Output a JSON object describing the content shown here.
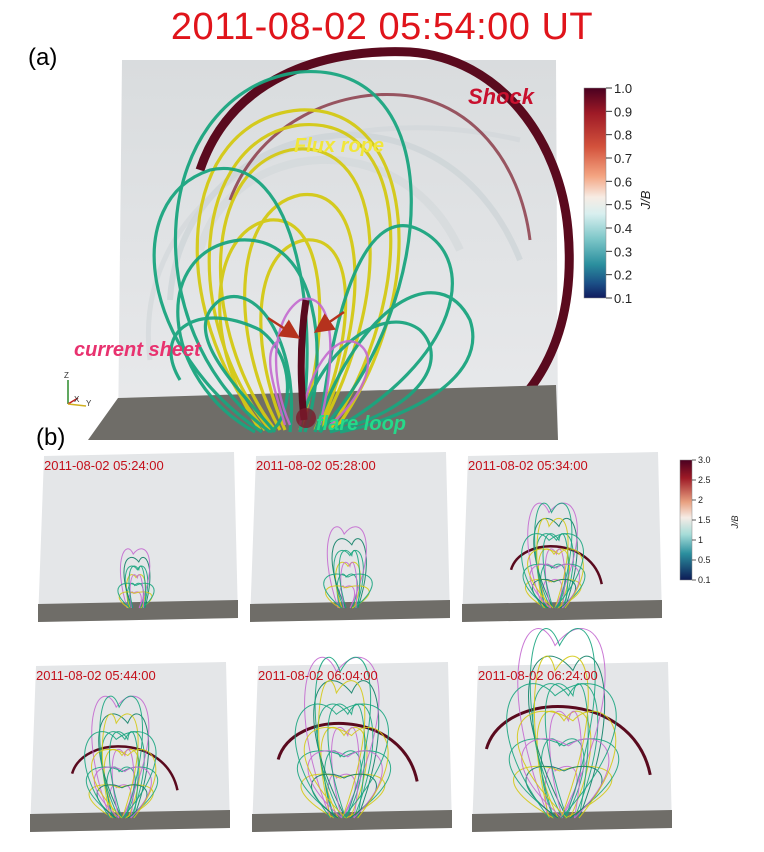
{
  "title": "2011-08-02 05:54:00 UT",
  "panel_a": {
    "label": "(a)",
    "annotations": {
      "shock": "Shock",
      "flux_rope": "Flux rope",
      "current_sheet": "current sheet",
      "flare_loop": "flare loop"
    },
    "axes": {
      "z": "Z",
      "x": "X",
      "y": "Y"
    },
    "colorbar": {
      "label": "J/B",
      "min": 0.1,
      "max": 1.0,
      "ticks": [
        "1.0",
        "0.9",
        "0.8",
        "0.7",
        "0.6",
        "0.5",
        "0.4",
        "0.3",
        "0.2",
        "0.1"
      ],
      "colors": [
        "#4a0020",
        "#9e1a26",
        "#d3523c",
        "#f4a582",
        "#fbe6d3",
        "#d8efef",
        "#7cc6c8",
        "#2b8f9e",
        "#1b4f86",
        "#101b5e"
      ]
    }
  },
  "panel_b": {
    "label": "(b)",
    "colorbar": {
      "label": "J/B",
      "min": 0.1,
      "max": 3.0,
      "ticks": [
        "3.0",
        "2.5",
        "2",
        "1.5",
        "1",
        "0.5",
        "0.1"
      ]
    },
    "snapshots": [
      {
        "time": "2011-08-02 05:24:00",
        "stage": 1
      },
      {
        "time": "2011-08-02 05:28:00",
        "stage": 2
      },
      {
        "time": "2011-08-02 05:34:00",
        "stage": 3
      },
      {
        "time": "2011-08-02 05:44:00",
        "stage": 4
      },
      {
        "time": "2011-08-02 06:04:00",
        "stage": 5
      },
      {
        "time": "2011-08-02 06:24:00",
        "stage": 6
      }
    ]
  },
  "colors": {
    "title_red": "#e0141b",
    "shock": "#5a0a1e",
    "flux_rope": "#d4c914",
    "field_green": "#1aa57f",
    "field_magenta": "#c46ad0",
    "floor": "#6f6d68",
    "panel_bg": "#e6e8ea",
    "current_sheet_label": "#e8326f",
    "flare_loop_label": "#25d98a"
  }
}
